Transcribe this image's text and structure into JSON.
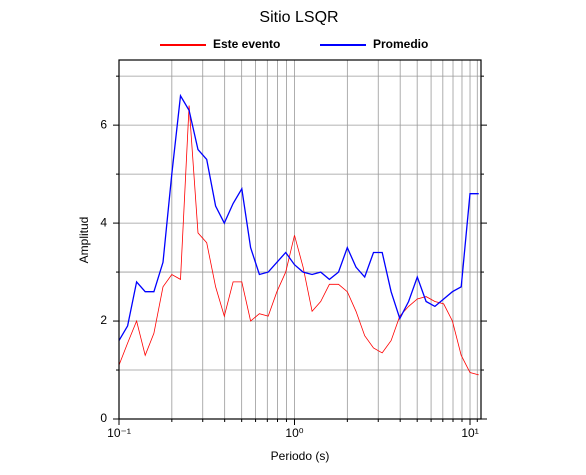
{
  "chart_data": {
    "type": "line",
    "title": "Sitio LSQR",
    "x_label": "Periodo (s)",
    "y_label": "Amplitud",
    "xlog": true,
    "grid": true,
    "xlim": [
      0.1,
      11.55
    ],
    "ylim": [
      0,
      7.33
    ],
    "xticks": [
      {
        "value": 0.1,
        "label": "10⁻¹"
      },
      {
        "value": 1,
        "label": "10⁰"
      },
      {
        "value": 10,
        "label": "10¹"
      }
    ],
    "x_minor_ticks": [
      0.2,
      0.3,
      0.4,
      0.5,
      0.6,
      0.7,
      0.8,
      0.9,
      2,
      3,
      4,
      5,
      6,
      7,
      8,
      9,
      11
    ],
    "yticks": [
      0,
      2,
      4,
      6
    ],
    "y_minor_ticks": [
      1,
      3,
      5,
      7
    ],
    "x": [
      0.1,
      0.112,
      0.126,
      0.141,
      0.158,
      0.178,
      0.2,
      0.224,
      0.251,
      0.282,
      0.316,
      0.355,
      0.398,
      0.447,
      0.501,
      0.562,
      0.631,
      0.708,
      0.794,
      0.891,
      1,
      1.12,
      1.26,
      1.41,
      1.58,
      1.78,
      2,
      2.24,
      2.51,
      2.82,
      3.16,
      3.55,
      3.98,
      4.47,
      5.01,
      5.62,
      6.31,
      7.08,
      7.94,
      8.91,
      10,
      11.2
    ],
    "series": [
      {
        "name": "Este evento",
        "color": "#ff0000",
        "values": [
          1.1,
          1.55,
          2.0,
          1.3,
          1.75,
          2.7,
          2.95,
          2.85,
          6.4,
          3.8,
          3.6,
          2.7,
          2.1,
          2.8,
          2.8,
          2.0,
          2.15,
          2.1,
          2.6,
          3.0,
          3.75,
          3.1,
          2.2,
          2.4,
          2.75,
          2.75,
          2.6,
          2.2,
          1.7,
          1.45,
          1.35,
          1.6,
          2.1,
          2.3,
          2.45,
          2.5,
          2.4,
          2.35,
          2.0,
          1.3,
          0.95,
          0.9
        ]
      },
      {
        "name": "Promedio",
        "color": "#0000ff",
        "values": [
          1.6,
          1.9,
          2.8,
          2.6,
          2.6,
          3.2,
          5.0,
          6.6,
          6.3,
          5.5,
          5.3,
          4.35,
          4.0,
          4.4,
          4.7,
          3.5,
          2.95,
          3.0,
          3.2,
          3.4,
          3.15,
          3.0,
          2.95,
          3.0,
          2.85,
          3.0,
          3.5,
          3.1,
          2.9,
          3.4,
          3.4,
          2.6,
          2.05,
          2.4,
          2.9,
          2.4,
          2.3,
          2.45,
          2.6,
          2.7,
          4.6,
          4.6
        ]
      }
    ]
  }
}
